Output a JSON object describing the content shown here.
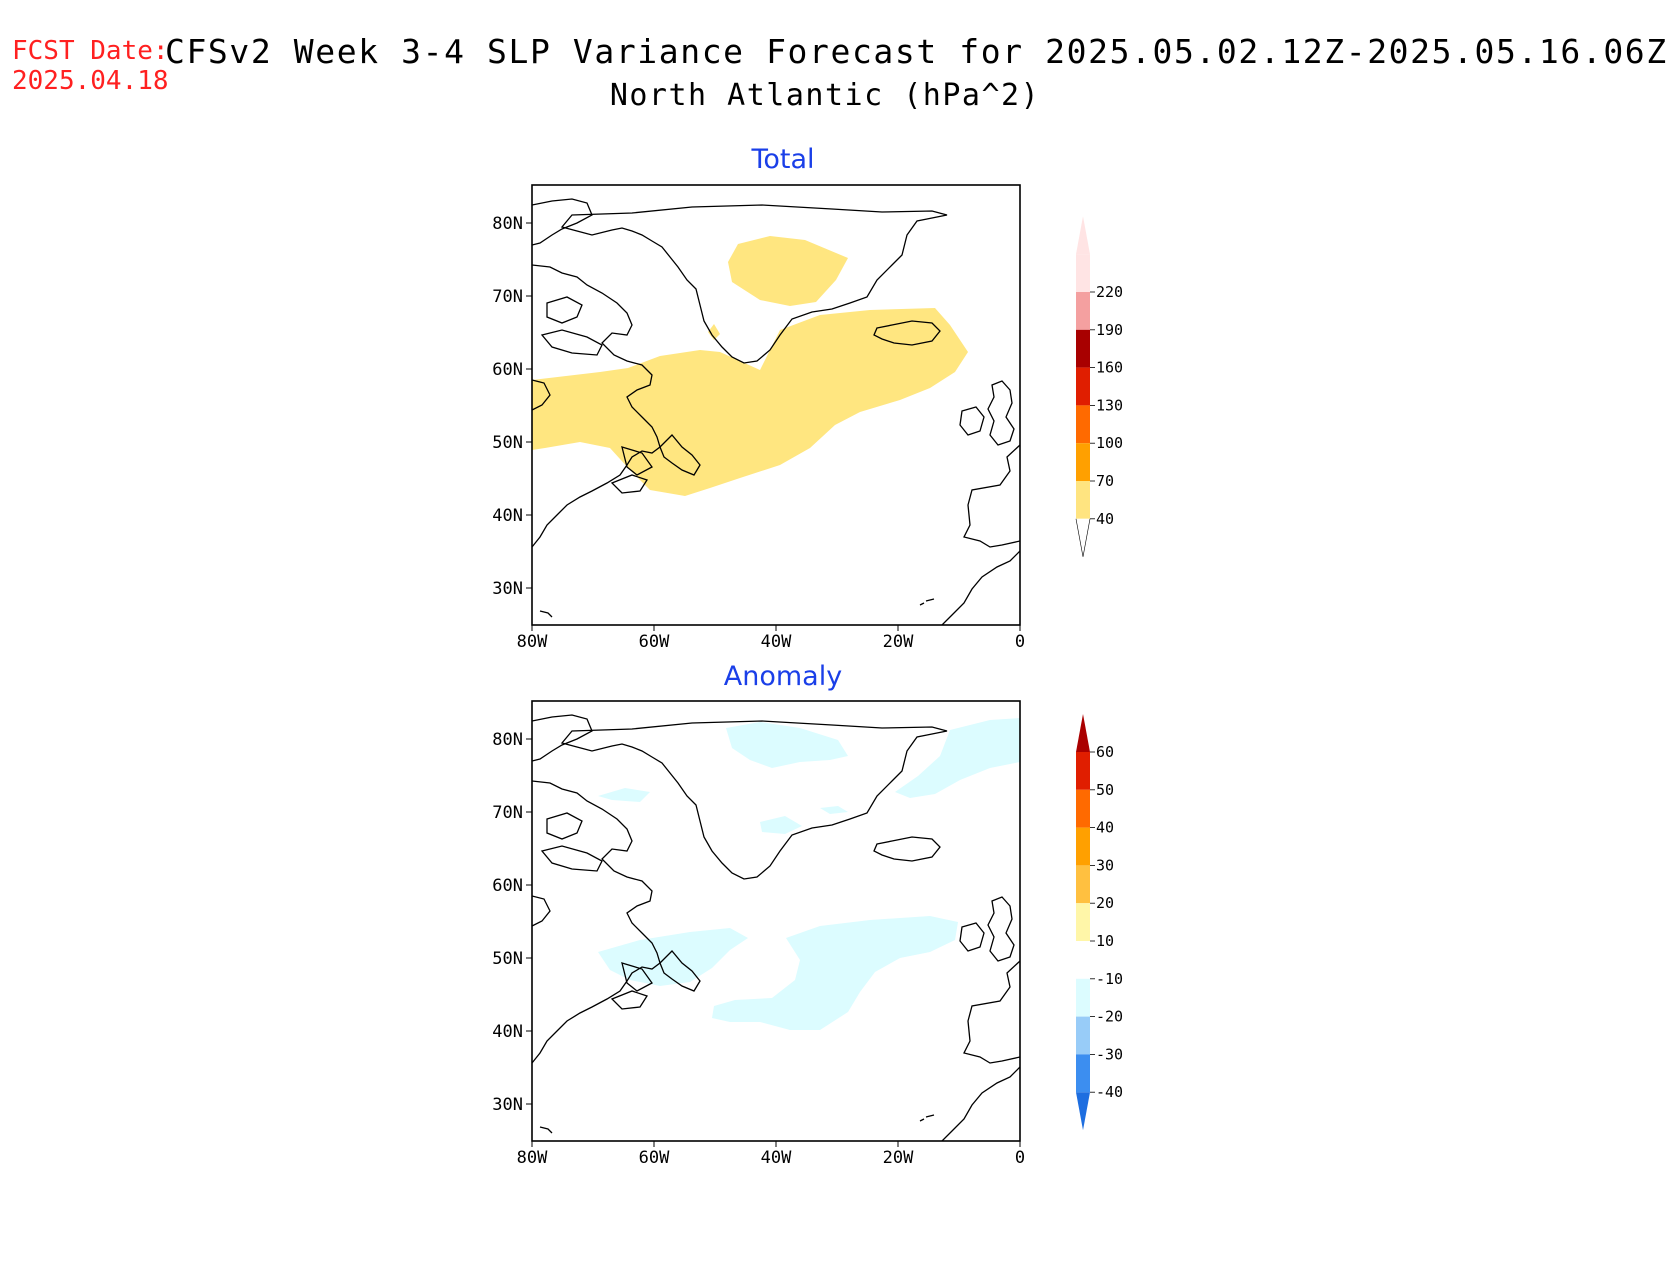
{
  "header": {
    "fcst_label": "FCST Date:",
    "fcst_date": "2025.04.18",
    "title": "CFSv2 Week 3-4 SLP Variance Forecast for 2025.05.02.12Z-2025.05.16.06Z",
    "subtitle": "North Atlantic (hPa^2)"
  },
  "axes": {
    "lat_labels": [
      "80N",
      "70N",
      "60N",
      "50N",
      "40N",
      "30N"
    ],
    "lon_labels": [
      "80W",
      "60W",
      "40W",
      "20W",
      "0"
    ]
  },
  "panels": [
    {
      "title": "Total",
      "colorbar": {
        "levels": [
          "220",
          "190",
          "160",
          "130",
          "100",
          "70",
          "40"
        ],
        "colors": [
          "#ffe4e4",
          "#f4a0a0",
          "#a80000",
          "#e01e00",
          "#ff6a00",
          "#ffa000",
          "#ffe480"
        ],
        "fill_color": "#ffe680"
      }
    },
    {
      "title": "Anomaly",
      "colorbar": {
        "levels": [
          "60",
          "50",
          "40",
          "30",
          "20",
          "10",
          "-10",
          "-20",
          "-30",
          "-40"
        ],
        "colors": [
          "#aa0000",
          "#e01e00",
          "#ff6a00",
          "#ffa000",
          "#ffc040",
          "#fff6a8",
          "#ffffff",
          "#dcfcff",
          "#98ccf8",
          "#3c8ef0",
          "#1e6ee0"
        ],
        "fill_color": "#dcfcff"
      }
    }
  ]
}
